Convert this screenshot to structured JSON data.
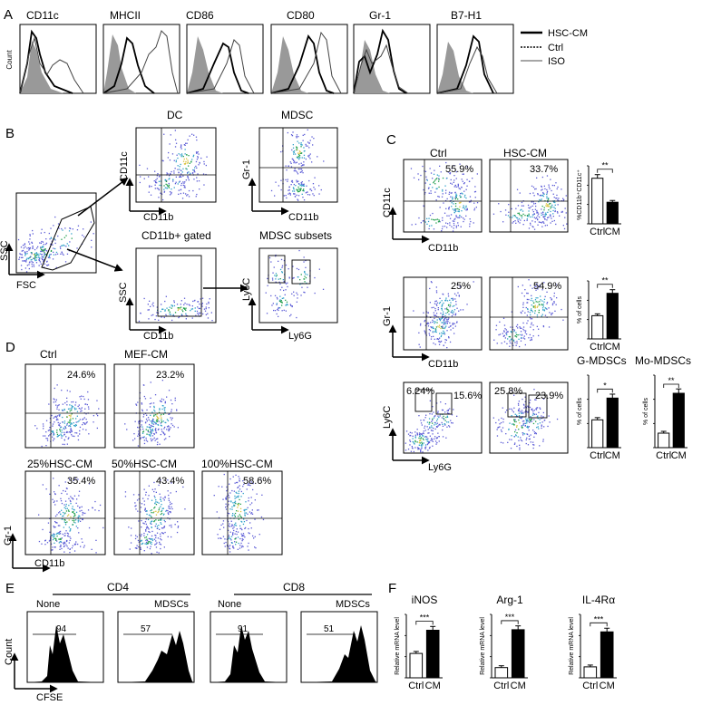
{
  "panels": {
    "A": {
      "letter": "A",
      "markers": [
        "CD11c",
        "MHCII",
        "CD86",
        "CD80",
        "Gr-1",
        "B7-H1"
      ],
      "y_label": "Count",
      "legend": [
        "HSC-CM",
        "Ctrl",
        "ISO"
      ]
    },
    "B": {
      "letter": "B",
      "plots": {
        "scatter": {
          "xlabel": "FSC",
          "ylabel": "SSC"
        },
        "dc": {
          "title": "DC",
          "xlabel": "CD11b",
          "ylabel": "CD11c"
        },
        "mdsc": {
          "title": "MDSC",
          "xlabel": "CD11b",
          "ylabel": "Gr-1"
        },
        "gated": {
          "title": "CD11b+ gated",
          "xlabel": "CD11b",
          "ylabel": "SSC"
        },
        "subsets": {
          "title": "MDSC subsets",
          "xlabel": "Ly6G",
          "ylabel": "Ly6C"
        }
      }
    },
    "C": {
      "letter": "C",
      "columns": [
        "Ctrl",
        "HSC-CM"
      ],
      "row1": {
        "ylabel": "CD11c",
        "xlabel": "CD11b",
        "ctrl_pct": "55.9%",
        "cm_pct": "33.7%"
      },
      "row2": {
        "ylabel": "Gr-1",
        "xlabel": "CD11b",
        "ctrl_pct": "25%",
        "cm_pct": "54.9%"
      },
      "row3": {
        "ylabel": "Ly6C",
        "xlabel": "Ly6G",
        "ctrl_g": "15.6%",
        "ctrl_mo": "6.24%",
        "cm_g": "23.9%",
        "cm_mo": "25.8%"
      }
    },
    "D": {
      "letter": "D",
      "plots": [
        {
          "label": "Ctrl",
          "pct": "24.6%"
        },
        {
          "label": "MEF-CM",
          "pct": "23.2%"
        },
        {
          "label": "25%HSC-CM",
          "pct": "35.4%"
        },
        {
          "label": "50%HSC-CM",
          "pct": "43.4%"
        },
        {
          "label": "100%HSC-CM",
          "pct": "58.6%"
        }
      ],
      "ylabel": "Gr-1",
      "xlabel": "CD11b"
    },
    "E": {
      "letter": "E",
      "groups": [
        "CD4",
        "CD8"
      ],
      "conditions": [
        "None",
        "MDSCs",
        "None",
        "MDSCs"
      ],
      "values": [
        "94",
        "57",
        "91",
        "51"
      ],
      "ylabel": "Count",
      "xlabel": "CFSE"
    },
    "F": {
      "letter": "F"
    }
  },
  "chart_data": [
    {
      "type": "bar",
      "title": "",
      "ylabel": "%CD11b⁺CD11c⁺",
      "categories": [
        "Ctrl",
        "CM"
      ],
      "values": [
        55,
        26
      ],
      "ylim": [
        0,
        70
      ],
      "significance": "**"
    },
    {
      "type": "bar",
      "title": "",
      "ylabel": "% of cells",
      "categories": [
        "Ctrl",
        "CM"
      ],
      "values": [
        28,
        55
      ],
      "ylim": [
        0,
        70
      ],
      "significance": "**"
    },
    {
      "type": "bar",
      "title": "G-MDSCs",
      "ylabel": "% of cells",
      "categories": [
        "Ctrl",
        "CM"
      ],
      "values": [
        11.5,
        20.5
      ],
      "ylim": [
        0,
        30
      ],
      "significance": "*"
    },
    {
      "type": "bar",
      "title": "Mo-MDSCs",
      "ylabel": "% of cells",
      "categories": [
        "Ctrl",
        "CM"
      ],
      "values": [
        6,
        22.5
      ],
      "ylim": [
        0,
        30
      ],
      "significance": "**"
    },
    {
      "type": "bar",
      "title": "iNOS",
      "ylabel": "Relative mRNA level",
      "categories": [
        "Ctrl",
        "CM"
      ],
      "values": [
        1.0,
        1.95
      ],
      "ylim": [
        0,
        2.6
      ],
      "significance": "***"
    },
    {
      "type": "bar",
      "title": "Arg-1",
      "ylabel": "Relative mRNA level",
      "categories": [
        "Ctrl",
        "CM"
      ],
      "values": [
        1.0,
        4.7
      ],
      "ylim": [
        0,
        6.2
      ],
      "significance": "***"
    },
    {
      "type": "bar",
      "title": "IL-4Rα",
      "ylabel": "Relative mRNA level",
      "categories": [
        "Ctrl",
        "CM"
      ],
      "values": [
        1.0,
        4.2
      ],
      "ylim": [
        0,
        5.8
      ],
      "significance": "***"
    }
  ]
}
